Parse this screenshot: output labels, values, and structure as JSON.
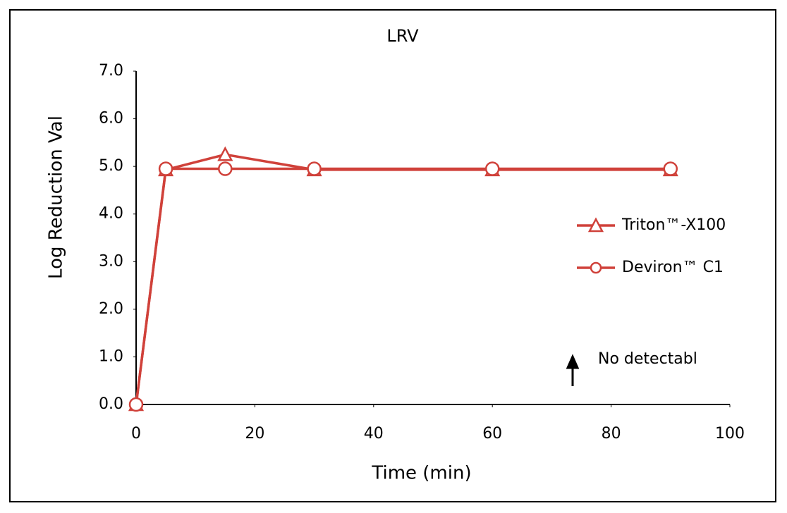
{
  "chart_data": {
    "type": "line",
    "title": "LRV",
    "x_label": "Time (min)",
    "y_label": "Log Reduction Val",
    "annotation": "No detectabl",
    "xlim": [
      0,
      100
    ],
    "xticks": [
      0,
      20,
      40,
      60,
      80,
      100
    ],
    "ylim": [
      0,
      7
    ],
    "yticks": [
      {
        "value": 0,
        "label": "0.0"
      },
      {
        "value": 1,
        "label": "1.0"
      },
      {
        "value": 2,
        "label": "2.0"
      },
      {
        "value": 3,
        "label": "3.0"
      },
      {
        "value": 4,
        "label": "4.0"
      },
      {
        "value": 5,
        "label": "5.0"
      },
      {
        "value": 6,
        "label": "6.0"
      },
      {
        "value": 7,
        "label": "7.0"
      }
    ],
    "grid": false,
    "legend": "right",
    "series": [
      {
        "name": "Triton™-X100",
        "color": "#d0413a",
        "marker": "triangle",
        "x": [
          0,
          5,
          15,
          30,
          60,
          90
        ],
        "values": [
          0,
          4.93,
          5.25,
          4.93,
          4.93,
          4.93
        ]
      },
      {
        "name": "Deviron™ C1",
        "color": "#d0413a",
        "marker": "circle",
        "x": [
          0,
          5,
          15,
          30,
          60,
          90
        ],
        "values": [
          0,
          4.95,
          4.95,
          4.95,
          4.95,
          4.95
        ]
      }
    ]
  }
}
